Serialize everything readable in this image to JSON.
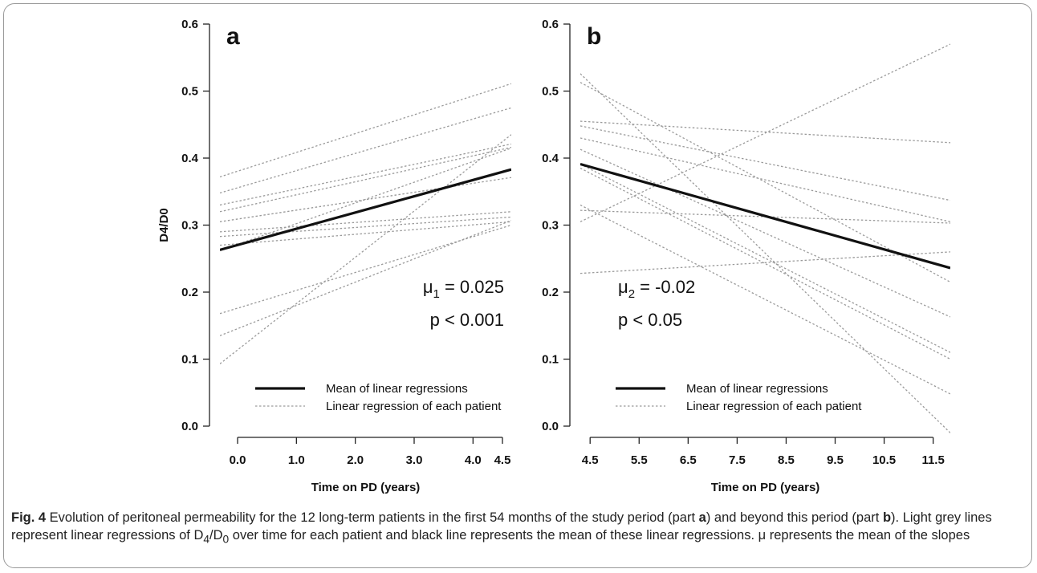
{
  "figure": {
    "caption_label": "Fig. 4",
    "caption_parts": [
      " Evolution of peritoneal permeability for the 12 long-term patients in the first 54 months of the study period (part ",
      "a",
      ") and beyond this period (part ",
      "b",
      "). Light grey lines represent linear regressions of D",
      "4",
      "/D",
      "0",
      " over time for each patient and black line represents the mean of these linear regressions. μ represents the mean of the slopes"
    ]
  },
  "chart_data": [
    {
      "type": "line",
      "panel": "a",
      "xlabel": "Time on PD (years)",
      "ylabel": "D4/D0",
      "xlim": [
        -0.3,
        4.65
      ],
      "ylim": [
        0.0,
        0.6
      ],
      "x_ticks": [
        0.0,
        1.0,
        2.0,
        3.0,
        4.0,
        4.5
      ],
      "x_tick_labels": [
        "0.0",
        "1.0",
        "2.0",
        "3.0",
        "4.0",
        "4.5"
      ],
      "y_ticks": [
        0.0,
        0.1,
        0.2,
        0.3,
        0.4,
        0.5,
        0.6
      ],
      "y_tick_labels": [
        "0.0",
        "0.1",
        "0.2",
        "0.3",
        "0.4",
        "0.5",
        "0.6"
      ],
      "mean_line": {
        "x": [
          -0.3,
          4.65
        ],
        "y": [
          0.263,
          0.383
        ]
      },
      "patient_lines": [
        {
          "x": [
            -0.3,
            4.65
          ],
          "y": [
            0.372,
            0.511
          ]
        },
        {
          "x": [
            -0.3,
            4.65
          ],
          "y": [
            0.348,
            0.475
          ]
        },
        {
          "x": [
            -0.3,
            4.65
          ],
          "y": [
            0.33,
            0.421
          ]
        },
        {
          "x": [
            -0.3,
            4.65
          ],
          "y": [
            0.32,
            0.416
          ]
        },
        {
          "x": [
            -0.3,
            4.65
          ],
          "y": [
            0.305,
            0.371
          ]
        },
        {
          "x": [
            -0.3,
            4.65
          ],
          "y": [
            0.29,
            0.32
          ]
        },
        {
          "x": [
            -0.3,
            4.65
          ],
          "y": [
            0.283,
            0.312
          ]
        },
        {
          "x": [
            -0.3,
            4.65
          ],
          "y": [
            0.27,
            0.305
          ]
        },
        {
          "x": [
            -0.3,
            4.65
          ],
          "y": [
            0.262,
            0.415
          ]
        },
        {
          "x": [
            -0.3,
            4.65
          ],
          "y": [
            0.168,
            0.3
          ]
        },
        {
          "x": [
            -0.3,
            4.65
          ],
          "y": [
            0.135,
            0.307
          ]
        },
        {
          "x": [
            -0.3,
            4.65
          ],
          "y": [
            0.093,
            0.435
          ]
        }
      ],
      "annotation_mu": {
        "symbol": "μ",
        "sub": "1",
        "text": " = 0.025"
      },
      "annotation_p": "p < 0.001",
      "legend": {
        "position": "bottom-left",
        "mean_label": "Mean of linear regressions",
        "patient_label": "Linear regression of each patient"
      }
    },
    {
      "type": "line",
      "panel": "b",
      "xlabel": "Time on PD (years)",
      "ylabel": "",
      "xlim": [
        4.3,
        11.85
      ],
      "ylim": [
        0.0,
        0.6
      ],
      "x_ticks": [
        4.5,
        5.5,
        6.5,
        7.5,
        8.5,
        9.5,
        10.5,
        11.5
      ],
      "x_tick_labels": [
        "4.5",
        "5.5",
        "6.5",
        "7.5",
        "8.5",
        "9.5",
        "10.5",
        "11.5"
      ],
      "y_ticks": [
        0.0,
        0.1,
        0.2,
        0.3,
        0.4,
        0.5,
        0.6
      ],
      "y_tick_labels": [
        "0.0",
        "0.1",
        "0.2",
        "0.3",
        "0.4",
        "0.5",
        "0.6"
      ],
      "mean_line": {
        "x": [
          4.3,
          11.85
        ],
        "y": [
          0.391,
          0.236
        ]
      },
      "patient_lines": [
        {
          "x": [
            4.3,
            11.85
          ],
          "y": [
            0.526,
            -0.01
          ]
        },
        {
          "x": [
            4.3,
            11.85
          ],
          "y": [
            0.513,
            0.215
          ]
        },
        {
          "x": [
            4.3,
            11.85
          ],
          "y": [
            0.455,
            0.423
          ]
        },
        {
          "x": [
            4.3,
            11.85
          ],
          "y": [
            0.448,
            0.337
          ]
        },
        {
          "x": [
            4.3,
            11.85
          ],
          "y": [
            0.43,
            0.305
          ]
        },
        {
          "x": [
            4.3,
            11.85
          ],
          "y": [
            0.413,
            0.163
          ]
        },
        {
          "x": [
            4.3,
            11.85
          ],
          "y": [
            0.391,
            0.11
          ]
        },
        {
          "x": [
            4.3,
            11.85
          ],
          "y": [
            0.385,
            0.1
          ]
        },
        {
          "x": [
            4.3,
            11.85
          ],
          "y": [
            0.33,
            0.048
          ]
        },
        {
          "x": [
            4.3,
            11.85
          ],
          "y": [
            0.322,
            0.303
          ]
        },
        {
          "x": [
            4.3,
            11.85
          ],
          "y": [
            0.305,
            0.57
          ]
        },
        {
          "x": [
            4.3,
            11.85
          ],
          "y": [
            0.228,
            0.26
          ]
        }
      ],
      "annotation_mu": {
        "symbol": "μ",
        "sub": "2",
        "text": " = -0.02"
      },
      "annotation_p": "p < 0.05",
      "legend": {
        "position": "bottom-left",
        "mean_label": "Mean of linear regressions",
        "patient_label": "Linear regression of each patient"
      }
    }
  ]
}
